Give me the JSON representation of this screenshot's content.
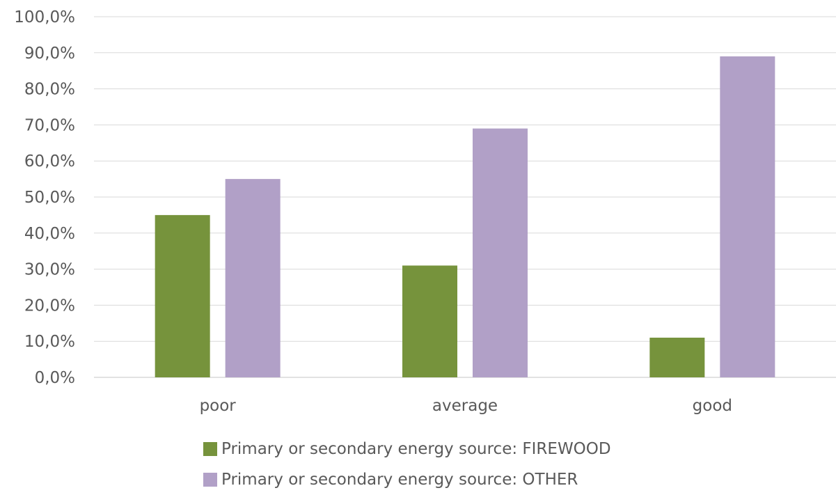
{
  "chart_data": {
    "type": "bar",
    "categories": [
      "poor",
      "average",
      "good"
    ],
    "series": [
      {
        "name": "Primary or secondary energy source: FIREWOOD",
        "color": "#76933c",
        "values": [
          45.0,
          31.0,
          11.0
        ]
      },
      {
        "name": "Primary or secondary energy source: OTHER",
        "color": "#b1a0c7",
        "values": [
          55.0,
          69.0,
          89.0
        ]
      }
    ],
    "title": "",
    "xlabel": "",
    "ylabel": "",
    "ylim": [
      0,
      100
    ],
    "yticks": [
      "0,0%",
      "10,0%",
      "20,0%",
      "30,0%",
      "40,0%",
      "50,0%",
      "60,0%",
      "70,0%",
      "80,0%",
      "90,0%",
      "100,0%"
    ],
    "grid": true,
    "legend_position": "bottom",
    "gridline_color": "#d9d9d9"
  }
}
